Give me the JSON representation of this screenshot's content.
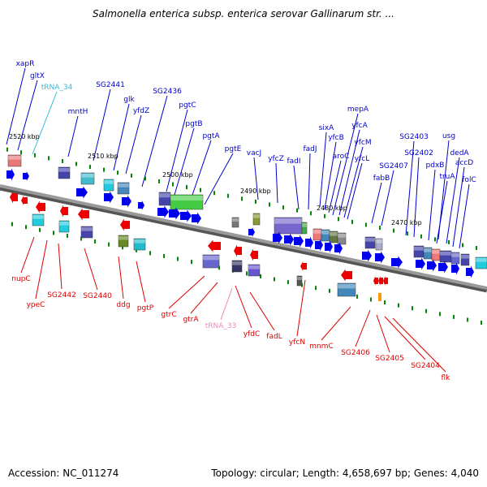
{
  "title": "Salmonella enterica subsp. enterica serovar Gallinarum str. ...",
  "footer": {
    "accession": "Accession: NC_011274",
    "summary": "Topology: circular; Length: 4,658,697 bp; Genes: 4,040"
  },
  "colors": {
    "forward_label": "#0000cc",
    "reverse_label": "#dd0000",
    "trna_forward_label": "#33bbdd",
    "trna_reverse_label": "#ee88bb",
    "forward_arrow": "#0000ee",
    "reverse_arrow": "#ee0000",
    "backbone": "#888888",
    "tick_mark": "#008800"
  },
  "scale_labels": [
    "2520 kbp",
    "2510 kbp",
    "2500 kbp",
    "2490 kbp",
    "2480 kbp",
    "2470 kbp"
  ],
  "forward_genes": [
    "xapR",
    "gltX",
    "tRNA_34",
    "mntH",
    "SG2441",
    "glk",
    "yfdZ",
    "SG2436",
    "pgtC",
    "pgtB",
    "pgtA",
    "pgtE",
    "vacJ",
    "yfcZ",
    "fadI",
    "fadJ",
    "sixA",
    "yfcB",
    "aroC",
    "mepA",
    "yfcA",
    "yfcM",
    "yfcL",
    "fabB",
    "SG2407",
    "SG2403",
    "SG2402",
    "usg",
    "pdxB",
    "truA",
    "dedA",
    "accD",
    "folC"
  ],
  "reverse_genes": [
    "nupC",
    "ypeC",
    "SG2442",
    "SG2440",
    "ddg",
    "pgtP",
    "gtrC",
    "gtrA",
    "tRNA_33",
    "yfdC",
    "fadL",
    "yfcN",
    "mnmC",
    "SG2406",
    "SG2405",
    "SG2404",
    "flk"
  ]
}
